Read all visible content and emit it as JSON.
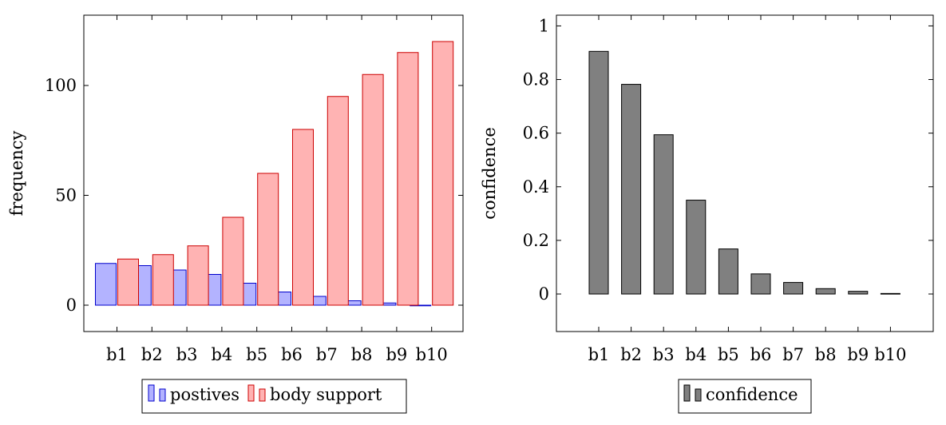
{
  "chart_data": [
    {
      "type": "bar",
      "categories": [
        "b1",
        "b2",
        "b3",
        "b4",
        "b5",
        "b6",
        "b7",
        "b8",
        "b9",
        "b10"
      ],
      "series": [
        {
          "name": "postives",
          "values": [
            19,
            18,
            16,
            14,
            10,
            6,
            4,
            2,
            1,
            0
          ],
          "fill": "#b3b3ff",
          "stroke": "#0000cc"
        },
        {
          "name": "body support",
          "values": [
            21,
            23,
            27,
            40,
            60,
            80,
            95,
            105,
            115,
            120
          ],
          "fill": "#ffb3b3",
          "stroke": "#cc0000"
        }
      ],
      "xlabel": "",
      "ylabel": "frequency",
      "ylim": [
        -12,
        132
      ],
      "yticks": [
        0,
        50,
        100
      ],
      "grid": false,
      "legend_position": "bottom"
    },
    {
      "type": "bar",
      "categories": [
        "b1",
        "b2",
        "b3",
        "b4",
        "b5",
        "b6",
        "b7",
        "b8",
        "b9",
        "b10"
      ],
      "series": [
        {
          "name": "confidence",
          "values": [
            0.905,
            0.782,
            0.594,
            0.35,
            0.168,
            0.075,
            0.043,
            0.02,
            0.01,
            0.002
          ],
          "fill": "#808080",
          "stroke": "#000000"
        }
      ],
      "xlabel": "",
      "ylabel": "confidence",
      "ylim": [
        -0.14,
        1.04
      ],
      "yticks": [
        0,
        0.2,
        0.4,
        0.6,
        0.8,
        1
      ],
      "grid": false,
      "legend_position": "bottom"
    }
  ]
}
